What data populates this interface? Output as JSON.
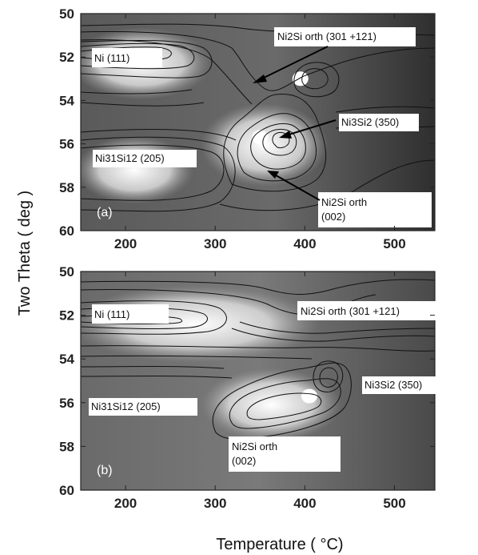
{
  "chart_data": {
    "type": "heatmap",
    "xlabel": "Temperature ( °C)",
    "ylabel": "Two Theta ( deg )",
    "xlim": [
      150,
      545
    ],
    "ylim": [
      50,
      60
    ],
    "y_inverted": true,
    "xticks": [
      200,
      300,
      400,
      500
    ],
    "yticks": [
      50,
      52,
      54,
      56,
      58,
      60
    ],
    "panels": [
      {
        "letter": "a",
        "inner_label": "(a)",
        "annotations": [
          {
            "text": "Ni   (111)"
          },
          {
            "text": "Ni2Si orth (301 +121)"
          },
          {
            "text": "Ni3Si2 (350)"
          },
          {
            "text": "Ni31Si12   (205)"
          },
          {
            "text": "Ni2Si orth"
          },
          {
            "text": "(002)"
          }
        ],
        "bright_regions": [
          {
            "x_range": [
              155,
              280
            ],
            "y_range": [
              51.0,
              53.6
            ]
          },
          {
            "x_range": [
              300,
              410
            ],
            "y_range": [
              54.5,
              57.6
            ]
          },
          {
            "x_range": [
              160,
              260
            ],
            "y_range": [
              56.0,
              58.4
            ]
          }
        ],
        "peaks": [
          {
            "x": 350,
            "y": 55.7
          },
          {
            "x": 395,
            "y": 53.0
          }
        ]
      },
      {
        "letter": "b",
        "inner_label": "(b)",
        "annotations": [
          {
            "text": "Ni   (111)"
          },
          {
            "text": "Ni2Si orth (301 +121)"
          },
          {
            "text": "Ni3Si2 (350)"
          },
          {
            "text": "Ni31Si12   (205)"
          },
          {
            "text": "Ni2Si orth"
          },
          {
            "text": "(002)"
          }
        ],
        "bright_regions": [
          {
            "x_range": [
              155,
              400
            ],
            "y_range": [
              51.0,
              53.8
            ]
          },
          {
            "x_range": [
              300,
              425
            ],
            "y_range": [
              54.8,
              57.4
            ]
          }
        ],
        "peaks": [
          {
            "x": 405,
            "y": 55.7
          }
        ]
      }
    ]
  }
}
